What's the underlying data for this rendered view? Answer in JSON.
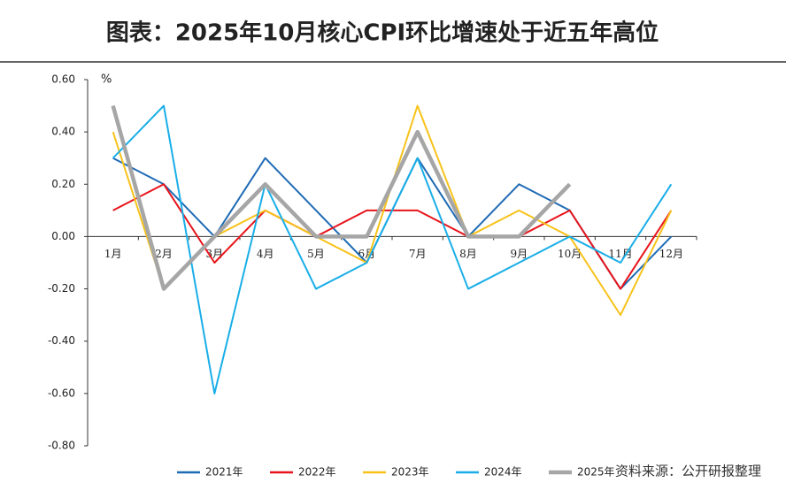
{
  "chart_data": {
    "type": "line",
    "title": "图表：2025年10月核心CPI环比增速处于近五年高位",
    "y_label": "%",
    "source": "资料来源：公开研报整理",
    "categories": [
      "1月",
      "2月",
      "3月",
      "4月",
      "5月",
      "6月",
      "7月",
      "8月",
      "9月",
      "10月",
      "11月",
      "12月"
    ],
    "series": [
      {
        "name": "2021年",
        "color": "#1f6bb5",
        "values": [
          0.3,
          0.2,
          0,
          0.3,
          0.1,
          -0.1,
          0.3,
          0,
          0.2,
          0.1,
          -0.2,
          0
        ]
      },
      {
        "name": "2022年",
        "color": "#e8141b",
        "values": [
          0.1,
          0.2,
          -0.1,
          0.1,
          0,
          0.1,
          0.1,
          0,
          0,
          0.1,
          -0.2,
          0.1
        ]
      },
      {
        "name": "2023年",
        "color": "#f7c21a",
        "values": [
          0.4,
          -0.2,
          0,
          0.1,
          0,
          -0.1,
          0.5,
          0,
          0.1,
          0,
          -0.3,
          0.1
        ]
      },
      {
        "name": "2024年",
        "color": "#19aee8",
        "values": [
          0.3,
          0.5,
          -0.6,
          0.2,
          -0.2,
          -0.1,
          0.3,
          -0.2,
          -0.1,
          0,
          -0.1,
          0.2
        ]
      },
      {
        "name": "2025年",
        "color": "#a6a6a6",
        "values": [
          0.5,
          -0.2,
          0,
          0.2,
          0,
          0,
          0.4,
          0,
          0,
          0.2,
          null,
          null
        ]
      }
    ],
    "ylim": [
      -0.8,
      0.6
    ],
    "yticks": [
      {
        "value": -0.8,
        "label": "-0.80"
      },
      {
        "value": -0.6,
        "label": "-0.60"
      },
      {
        "value": -0.4,
        "label": "-0.40"
      },
      {
        "value": -0.2,
        "label": "-0.20"
      },
      {
        "value": 0,
        "label": "0.00"
      },
      {
        "value": 0.2,
        "label": "0.20"
      },
      {
        "value": 0.4,
        "label": "0.40"
      },
      {
        "value": 0.6,
        "label": "0.60"
      }
    ],
    "grid": false,
    "legend": "bottom"
  }
}
